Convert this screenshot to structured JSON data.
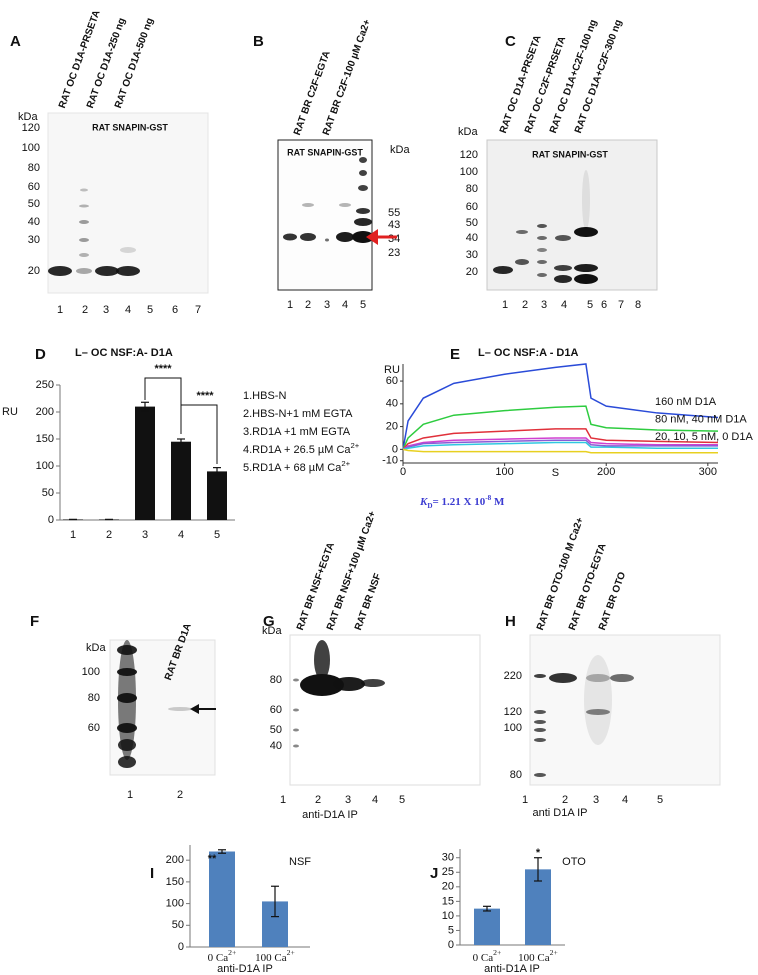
{
  "panels": {
    "A": {
      "label": "A",
      "lanes": [
        "RAT OC D1A-PRSETA",
        "RAT OC D1A-250 ng",
        "RAT OC D1A-500 ng"
      ],
      "blot_title": "RAT SNAPIN-GST",
      "kda_label": "kDa",
      "kda": [
        120,
        100,
        80,
        60,
        50,
        40,
        30,
        20
      ],
      "lane_numbers": [
        1,
        2,
        3,
        4,
        5,
        6,
        7
      ]
    },
    "B": {
      "label": "B",
      "lanes": [
        "RAT BR C2F-EGTA",
        "RAT BR C2F-100 µM Ca2+"
      ],
      "blot_title": "RAT SNAPIN-GST",
      "kda_label": "kDa",
      "kda": [
        55,
        43,
        34,
        23
      ],
      "lane_numbers": [
        1,
        2,
        3,
        4,
        5
      ]
    },
    "C": {
      "label": "C",
      "lanes": [
        "RAT OC D1A-PRSETA",
        "RAT OC C2F-PRSETA",
        "RAT OC D1A+C2F-100 ng",
        "RAT OC D1A+C2F-300 ng"
      ],
      "blot_title": "RAT SNAPIN-GST",
      "kda_label": "kDa",
      "kda": [
        120,
        100,
        80,
        60,
        50,
        40,
        30,
        20
      ],
      "lane_numbers": [
        1,
        2,
        3,
        4,
        5,
        6,
        7,
        8
      ]
    },
    "D": {
      "label": "D",
      "title": "L– OC NSF:A- D1A",
      "y_label": "RU",
      "categories": [
        1,
        2,
        3,
        4,
        5
      ],
      "values": [
        1,
        1,
        210,
        145,
        90
      ],
      "errors": [
        0,
        0,
        8,
        5,
        7
      ],
      "color": "#111111",
      "ylim": [
        0,
        250
      ],
      "yticks": [
        0,
        50,
        100,
        150,
        200,
        250
      ],
      "significance": [
        "****",
        "****"
      ],
      "legend": [
        [
          "1.HBS-N"
        ],
        [
          "2.HBS-N+1 mM EGTA"
        ],
        [
          "3.RD1A +1 mM EGTA"
        ],
        [
          "4.RD1A + 26.5 µM Ca",
          "2+"
        ],
        [
          "5.RD1A + 68 µM Ca",
          "2+"
        ]
      ]
    },
    "E": {
      "label": "E",
      "title": "L– OC NSF:A - D1A",
      "y_label": "RU",
      "x_label": "S",
      "xlim": [
        0,
        310
      ],
      "xticks": [
        0,
        100,
        200,
        300
      ],
      "ylim": [
        -12,
        75
      ],
      "yticks": [
        -10,
        0,
        20,
        40,
        60
      ],
      "x": [
        0,
        5,
        20,
        50,
        100,
        150,
        180,
        185,
        200,
        250,
        310
      ],
      "series": [
        {
          "color": "#2a4bd8",
          "values": [
            0,
            25,
            45,
            58,
            66,
            72,
            75,
            45,
            38,
            32,
            28
          ]
        },
        {
          "color": "#2ecc40",
          "values": [
            0,
            10,
            22,
            30,
            34,
            37,
            38,
            22,
            19,
            17,
            16
          ]
        },
        {
          "color": "#e0303a",
          "values": [
            0,
            5,
            10,
            14,
            16,
            18,
            18,
            10,
            8,
            7,
            6
          ]
        },
        {
          "color": "#d040d0",
          "values": [
            0,
            3,
            6,
            8,
            9,
            10,
            10,
            6,
            5,
            4,
            4
          ]
        },
        {
          "color": "#8a5cd6",
          "values": [
            0,
            2,
            5,
            6,
            7,
            8,
            8,
            4,
            3,
            3,
            3
          ]
        },
        {
          "color": "#30c8e0",
          "values": [
            0,
            1,
            3,
            4,
            5,
            6,
            6,
            2,
            2,
            1,
            1
          ]
        },
        {
          "color": "#e8d020",
          "values": [
            0,
            -1,
            -2,
            -2,
            -2,
            -2,
            -2,
            -3,
            -3,
            -3,
            -3
          ]
        }
      ],
      "legend": [
        "160 nM D1A",
        "80 nM, 40 nM D1A",
        "20, 10, 5 nM, 0  D1A"
      ],
      "kd": [
        "K",
        "D",
        "= 1.21 X 10",
        "-8",
        " M"
      ]
    },
    "F": {
      "label": "F",
      "lanes": [
        "RAT BR D1A"
      ],
      "kda_label": "kDa",
      "kda": [
        100,
        80,
        60
      ],
      "lane_numbers": [
        1,
        2
      ]
    },
    "G": {
      "label": "G",
      "lanes": [
        "RAT BR NSF+EGTA",
        "RAT BR NSF+100 µM Ca2+",
        "RAT BR NSF"
      ],
      "kda_label": "kDa",
      "kda": [
        80,
        60,
        50,
        40
      ],
      "lane_numbers": [
        1,
        2,
        3,
        4,
        5
      ],
      "caption": "anti-D1A IP"
    },
    "H": {
      "label": "H",
      "lanes": [
        "RAT BR OTO-100 M Ca2+",
        "RAT BR OTO-EGTA",
        "RAT BR OTO"
      ],
      "kda": [
        220,
        120,
        100,
        80
      ],
      "lane_numbers": [
        1,
        2,
        3,
        4,
        5
      ],
      "caption": "anti D1A IP"
    },
    "I": {
      "label": "I",
      "title": "NSF",
      "significance": [
        "**"
      ],
      "categories": [
        [
          "0 Ca",
          "2+"
        ],
        [
          "100 Ca",
          "2+"
        ]
      ],
      "values": [
        220,
        105
      ],
      "errors": [
        4,
        35
      ],
      "color": "#4f81bd",
      "ylim": [
        0,
        235
      ],
      "yticks": [
        0,
        50,
        100,
        150,
        200
      ],
      "caption": "anti-D1A IP"
    },
    "J": {
      "label": "J",
      "title": "OTO",
      "significance": [
        "*"
      ],
      "categories": [
        [
          "0 Ca",
          "2+"
        ],
        [
          "100 Ca",
          "2+"
        ]
      ],
      "values": [
        12.5,
        26
      ],
      "errors": [
        0.8,
        4
      ],
      "color": "#4f81bd",
      "ylim": [
        0,
        33
      ],
      "yticks": [
        0,
        5,
        10,
        15,
        20,
        25,
        30
      ],
      "caption": "anti-D1A IP"
    }
  }
}
